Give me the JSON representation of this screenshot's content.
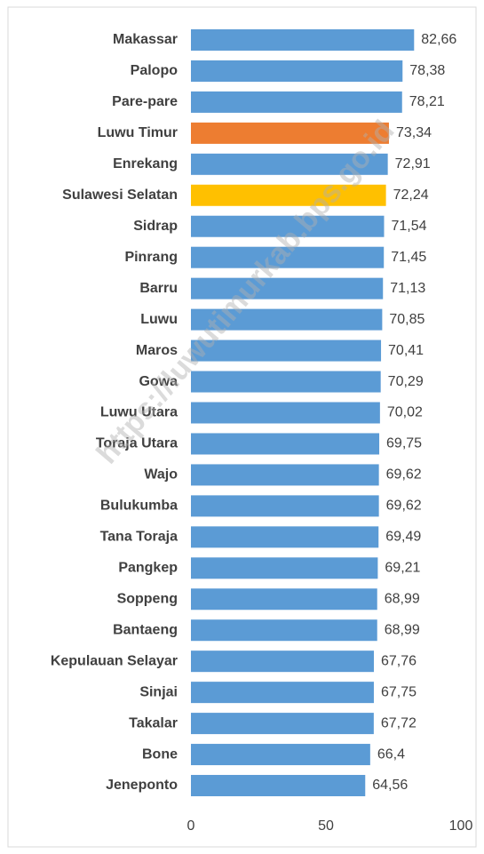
{
  "chart_data": {
    "type": "bar",
    "orientation": "horizontal",
    "categories": [
      "Makassar",
      "Palopo",
      "Pare-pare",
      "Luwu Timur",
      "Enrekang",
      "Sulawesi Selatan",
      "Sidrap",
      "Pinrang",
      "Barru",
      "Luwu",
      "Maros",
      "Gowa",
      "Luwu Utara",
      "Toraja Utara",
      "Wajo",
      "Bulukumba",
      "Tana Toraja",
      "Pangkep",
      "Soppeng",
      "Bantaeng",
      "Kepulauan Selayar",
      "Sinjai",
      "Takalar",
      "Bone",
      "Jeneponto"
    ],
    "values": [
      82.66,
      78.38,
      78.21,
      73.34,
      72.91,
      72.24,
      71.54,
      71.45,
      71.13,
      70.85,
      70.41,
      70.29,
      70.02,
      69.75,
      69.62,
      69.62,
      69.49,
      69.21,
      68.99,
      68.99,
      67.76,
      67.75,
      67.72,
      66.4,
      64.56
    ],
    "value_labels": [
      "82,66",
      "78,38",
      "78,21",
      "73,34",
      "72,91",
      "72,24",
      "71,54",
      "71,45",
      "71,13",
      "70,85",
      "70,41",
      "70,29",
      "70,02",
      "69,75",
      "69,62",
      "69,62",
      "69,49",
      "69,21",
      "68,99",
      "68,99",
      "67,76",
      "67,75",
      "67,72",
      "66,4",
      "64,56"
    ],
    "colors": [
      "#5b9bd5",
      "#5b9bd5",
      "#5b9bd5",
      "#ed7d31",
      "#5b9bd5",
      "#ffc000",
      "#5b9bd5",
      "#5b9bd5",
      "#5b9bd5",
      "#5b9bd5",
      "#5b9bd5",
      "#5b9bd5",
      "#5b9bd5",
      "#5b9bd5",
      "#5b9bd5",
      "#5b9bd5",
      "#5b9bd5",
      "#5b9bd5",
      "#5b9bd5",
      "#5b9bd5",
      "#5b9bd5",
      "#5b9bd5",
      "#5b9bd5",
      "#5b9bd5",
      "#5b9bd5"
    ],
    "xlim": [
      0,
      100
    ],
    "xticks": [
      0,
      50,
      100
    ],
    "grid": false,
    "watermark": "https://luwutimurkab.bps.go.id"
  }
}
